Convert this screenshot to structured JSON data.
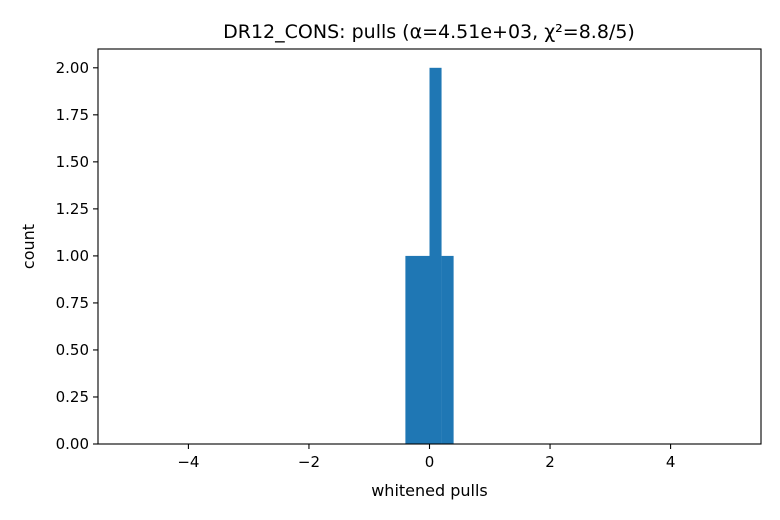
{
  "chart_data": {
    "type": "bar",
    "title": "DR12_CONS: pulls (α=4.51e+03, χ²=8.8/5)",
    "xlabel": "whitened pulls",
    "ylabel": "count",
    "xlim": [
      -5.5,
      5.5
    ],
    "ylim": [
      0,
      2.1
    ],
    "xticks": [
      -4,
      -2,
      0,
      2,
      4
    ],
    "xtick_labels": [
      "−4",
      "−2",
      "0",
      "2",
      "4"
    ],
    "yticks": [
      0,
      0.25,
      0.5,
      0.75,
      1.0,
      1.25,
      1.5,
      1.75,
      2.0
    ],
    "ytick_labels": [
      "0.00",
      "0.25",
      "0.50",
      "0.75",
      "1.00",
      "1.25",
      "1.50",
      "1.75",
      "2.00"
    ],
    "bins": [
      {
        "x0": -0.4,
        "x1": 0.0,
        "count": 1
      },
      {
        "x0": 0.0,
        "x1": 0.2,
        "count": 2
      },
      {
        "x0": 0.2,
        "x1": 0.4,
        "count": 1
      }
    ],
    "bar_color": "#1f77b4",
    "grid": false
  }
}
